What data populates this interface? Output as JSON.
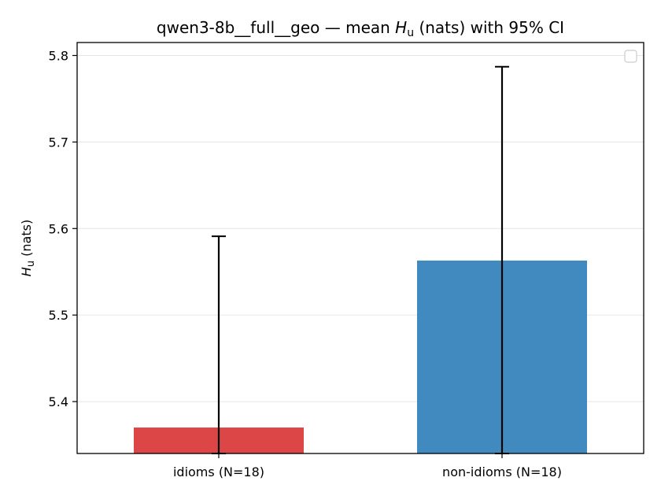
{
  "chart_data": {
    "type": "bar",
    "title_prefix": "qwen3-8b__full__geo — mean ",
    "title_symbol": "H",
    "title_subscript": "u",
    "title_suffix": " (nats) with 95% CI",
    "ylabel_symbol": "H",
    "ylabel_subscript": "u",
    "ylabel_suffix": " (nats)",
    "categories": [
      "idioms (N=18)",
      "non-idioms (N=18)"
    ],
    "values": [
      5.37,
      5.563
    ],
    "ci_lower": [
      5.338,
      5.338
    ],
    "ci_upper": [
      5.591,
      5.787
    ],
    "bar_colors": [
      "#dc4646",
      "#418ac0"
    ],
    "ylim": [
      5.34,
      5.815
    ],
    "yticks": [
      5.4,
      5.5,
      5.6,
      5.7,
      5.8
    ],
    "ytick_labels": [
      "5.4",
      "5.5",
      "5.6",
      "5.7",
      "5.8"
    ],
    "grid": "horizontal",
    "legend": "top-right, empty"
  }
}
